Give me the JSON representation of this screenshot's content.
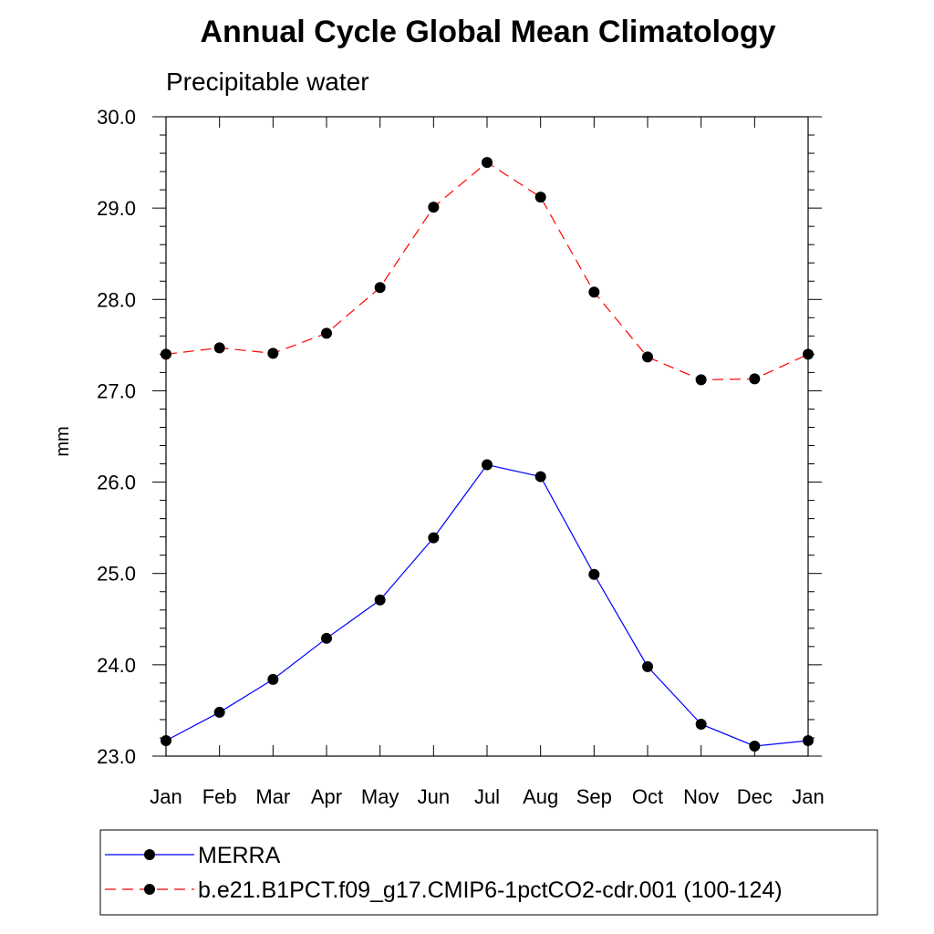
{
  "chart_data": {
    "type": "line",
    "title": "Annual Cycle Global Mean Climatology",
    "subtitle": "Precipitable water",
    "xlabel": "",
    "ylabel": "mm",
    "categories": [
      "Jan",
      "Feb",
      "Mar",
      "Apr",
      "May",
      "Jun",
      "Jul",
      "Aug",
      "Sep",
      "Oct",
      "Nov",
      "Dec",
      "Jan"
    ],
    "ylim": [
      23.0,
      30.0
    ],
    "yticks": [
      "23.0",
      "24.0",
      "25.0",
      "26.0",
      "27.0",
      "28.0",
      "29.0",
      "30.0"
    ],
    "grid": false,
    "legend_position": "bottom",
    "series": [
      {
        "name": "MERRA",
        "color": "#0000ff",
        "line_style": "solid",
        "values": [
          23.17,
          23.48,
          23.84,
          24.29,
          24.71,
          25.39,
          26.19,
          26.06,
          24.99,
          23.98,
          23.35,
          23.11,
          23.17
        ]
      },
      {
        "name": "b.e21.B1PCT.f09_g17.CMIP6-1pctCO2-cdr.001 (100-124)",
        "color": "#ff0000",
        "line_style": "dashed",
        "values": [
          27.4,
          27.47,
          27.41,
          27.63,
          28.13,
          29.01,
          29.5,
          29.12,
          28.08,
          27.37,
          27.12,
          27.13,
          27.4
        ]
      }
    ]
  }
}
